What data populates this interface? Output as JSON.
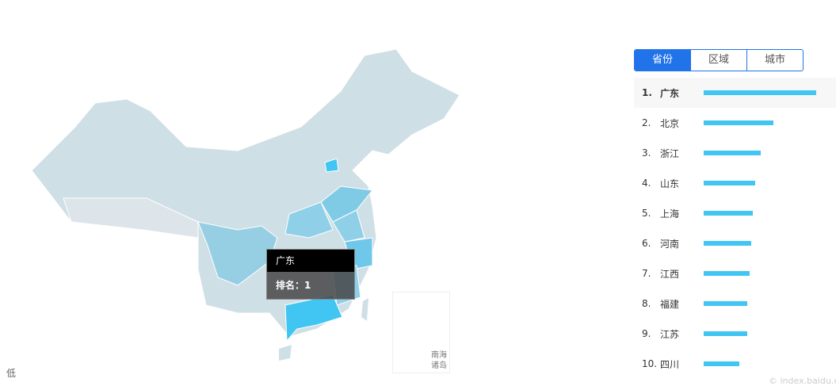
{
  "tabs": [
    {
      "label": "省份",
      "active": true
    },
    {
      "label": "区域",
      "active": false
    },
    {
      "label": "城市",
      "active": false
    }
  ],
  "ranking": [
    {
      "rank": "1.",
      "name": "广东",
      "value_pct": 100
    },
    {
      "rank": "2.",
      "name": "北京",
      "value_pct": 62
    },
    {
      "rank": "3.",
      "name": "浙江",
      "value_pct": 51
    },
    {
      "rank": "4.",
      "name": "山东",
      "value_pct": 46
    },
    {
      "rank": "5.",
      "name": "上海",
      "value_pct": 44
    },
    {
      "rank": "6.",
      "name": "河南",
      "value_pct": 42
    },
    {
      "rank": "7.",
      "name": "江西",
      "value_pct": 41
    },
    {
      "rank": "8.",
      "name": "福建",
      "value_pct": 39
    },
    {
      "rank": "9.",
      "name": "江苏",
      "value_pct": 39
    },
    {
      "rank": "10.",
      "name": "四川",
      "value_pct": 32
    }
  ],
  "tooltip": {
    "title": "广东",
    "rank_label": "排名：",
    "rank_value": "1"
  },
  "legend": {
    "low": "低"
  },
  "inset": {
    "label_line1": "南海",
    "label_line2": "诸岛"
  },
  "watermark": "© index.baidu.com",
  "colors": {
    "accent": "#2173ea",
    "bar": "#41c5f2",
    "highlight": "#41c5f2",
    "mid": "#7fcbe6",
    "light": "#c9dde6"
  }
}
